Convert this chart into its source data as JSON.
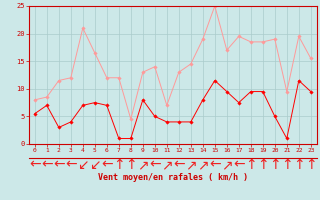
{
  "x": [
    0,
    1,
    2,
    3,
    4,
    5,
    6,
    7,
    8,
    9,
    10,
    11,
    12,
    13,
    14,
    15,
    16,
    17,
    18,
    19,
    20,
    21,
    22,
    23
  ],
  "wind_avg": [
    5.5,
    7,
    3,
    4,
    7,
    7.5,
    7,
    1,
    1,
    8,
    5,
    4,
    4,
    4,
    8,
    11.5,
    9.5,
    7.5,
    9.5,
    9.5,
    5,
    1,
    11.5,
    9.5
  ],
  "wind_gust": [
    8,
    8.5,
    11.5,
    12,
    21,
    16.5,
    12,
    12,
    4.5,
    13,
    14,
    7,
    13,
    14.5,
    19,
    25,
    17,
    19.5,
    18.5,
    18.5,
    19,
    9.5,
    19.5,
    15.5
  ],
  "bg_color": "#cce8e8",
  "grid_color": "#aacccc",
  "line_avg_color": "#ff0000",
  "line_gust_color": "#ff9999",
  "xlabel": "Vent moyen/en rafales ( km/h )",
  "xlabel_color": "#cc0000",
  "tick_color": "#cc0000",
  "arrow_color": "#ee2222",
  "ylim": [
    0,
    25
  ],
  "yticks": [
    0,
    5,
    10,
    15,
    20,
    25
  ],
  "arrow_symbols": [
    "←",
    "←",
    "←",
    "←",
    "↙",
    "↙",
    "←",
    "↑",
    "↑",
    "↗",
    "←",
    "↗",
    "←",
    "↗",
    "↗",
    "←",
    "↗",
    "←",
    "↑",
    "↑",
    "↑",
    "↑",
    "↑",
    "↑"
  ]
}
